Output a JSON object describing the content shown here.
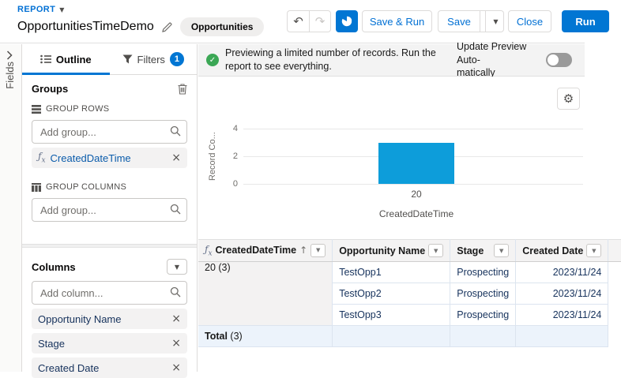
{
  "colors": {
    "accent": "#0176d3",
    "success": "#3ba755",
    "bar": "#0d9dda"
  },
  "header": {
    "report_label": "REPORT",
    "title": "OpportunitiesTimeDemo",
    "object_badge": "Opportunities",
    "undo": "↶",
    "redo": "↷",
    "save_and_run": "Save & Run",
    "save": "Save",
    "close": "Close",
    "run": "Run"
  },
  "fields_panel": {
    "label": "Fields"
  },
  "sidebar": {
    "tabs": [
      {
        "label": "Outline"
      },
      {
        "label": "Filters",
        "badge": "1"
      }
    ],
    "groups": {
      "heading": "Groups",
      "group_rows_label": "GROUP ROWS",
      "group_rows_placeholder": "Add group...",
      "group_row_item": "CreatedDateTime",
      "group_columns_label": "GROUP COLUMNS",
      "group_columns_placeholder": "Add group..."
    },
    "columns": {
      "heading": "Columns",
      "placeholder": "Add column...",
      "items": [
        "Opportunity Name",
        "Stage",
        "Created Date"
      ]
    }
  },
  "banner": {
    "message": "Previewing a limited number of records. Run the report to see everything.",
    "toggle_lines": [
      "Update Preview Auto-",
      "matically"
    ],
    "toggle_state": "off"
  },
  "chart_data": {
    "type": "bar",
    "categories": [
      "20"
    ],
    "values": [
      3
    ],
    "title": "",
    "xlabel": "CreatedDateTime",
    "ylabel": "Record Count",
    "ylabel_display": "Record Co...",
    "yticks": [
      0,
      2,
      4
    ],
    "ylim": [
      0,
      4
    ],
    "grid": true,
    "legend": false,
    "bar_color": "#0d9dda"
  },
  "table": {
    "headers": [
      {
        "label": "CreatedDateTime",
        "fx": "ƒx",
        "sort": "↑"
      },
      {
        "label": "Opportunity Name"
      },
      {
        "label": "Stage"
      },
      {
        "label": "Created Date"
      }
    ],
    "group_label": "20 (3)",
    "rows": [
      {
        "opportunity_name": "TestOpp1",
        "stage": "Prospecting",
        "created_date": "2023/11/24"
      },
      {
        "opportunity_name": "TestOpp2",
        "stage": "Prospecting",
        "created_date": "2023/11/24"
      },
      {
        "opportunity_name": "TestOpp3",
        "stage": "Prospecting",
        "created_date": "2023/11/24"
      }
    ],
    "total_label": "Total",
    "total_count": "(3)"
  }
}
